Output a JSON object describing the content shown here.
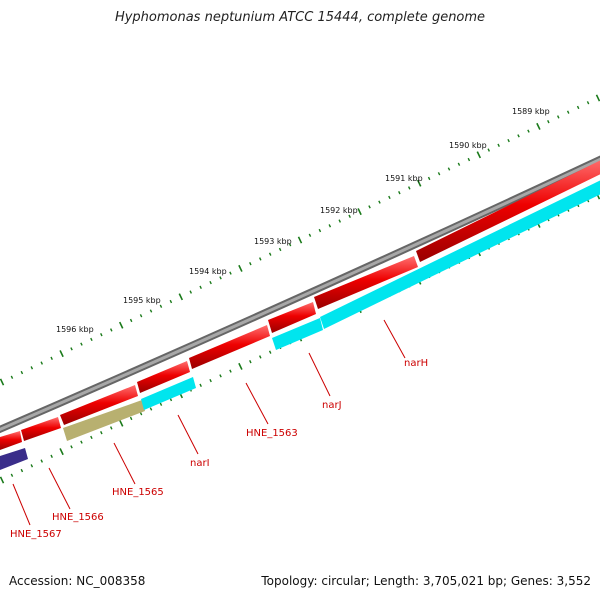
{
  "title": "Hyphomonas neptunium ATCC 15444, complete genome",
  "footer": {
    "accession": "Accession: NC_008358",
    "topology": "Topology: circular; Length: 3,705,021 bp; Genes: 3,552"
  },
  "colors": {
    "backbone": "#808080",
    "cds_forward": "#ee0000",
    "cds_reverse_cyan": "#00e5ee",
    "cds_olive": "#b8b070",
    "cds_purple": "#3a2d8a",
    "ticks": "#1a7a1a",
    "label_text": "#cc0000",
    "leader_line": "#cc0000"
  },
  "scale_labels": [
    "1589 kbp",
    "1590 kbp",
    "1591 kbp",
    "1592 kbp",
    "1593 kbp",
    "1594 kbp",
    "1595 kbp",
    "1596 kbp"
  ],
  "gene_labels": [
    "narH",
    "narJ",
    "HNE_1563",
    "narI",
    "HNE_1565",
    "HNE_1566",
    "HNE_1567"
  ]
}
